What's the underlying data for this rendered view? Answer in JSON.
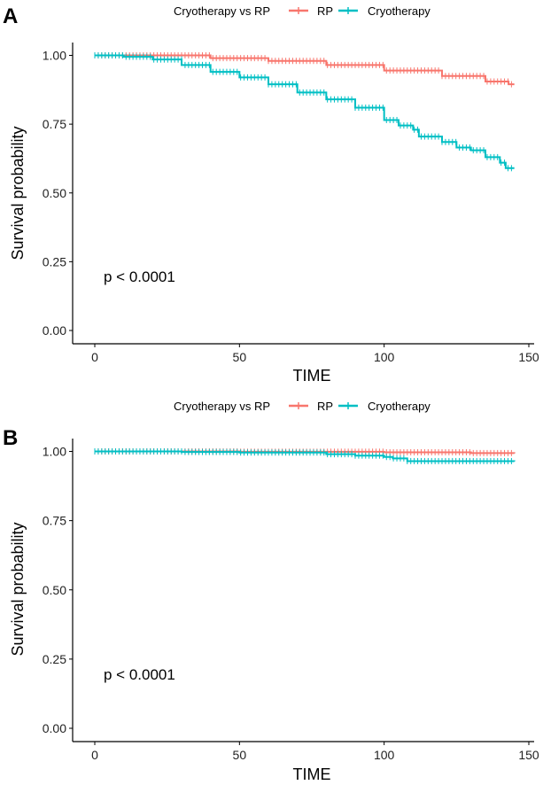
{
  "chart_data": [
    {
      "panel_label": "A",
      "type": "line",
      "subtype": "kaplan-meier step",
      "legend": {
        "title": "Cryotherapy vs RP",
        "position": "top"
      },
      "xlabel": "TIME",
      "ylabel": "Survival probability",
      "xlim": [
        0,
        150
      ],
      "ylim": [
        0,
        1
      ],
      "xticks": [
        "0",
        "50",
        "100",
        "150"
      ],
      "yticks": [
        "0.00",
        "0.25",
        "0.50",
        "0.75",
        "1.00"
      ],
      "annotation": "p < 0.0001",
      "grid": false,
      "series": [
        {
          "name": "RP",
          "color": "#F8766D",
          "x": [
            0,
            20,
            40,
            60,
            80,
            100,
            120,
            135,
            143,
            145
          ],
          "y": [
            1.0,
            1.0,
            0.99,
            0.98,
            0.965,
            0.945,
            0.925,
            0.905,
            0.895,
            0.895
          ]
        },
        {
          "name": "Cryotherapy",
          "color": "#00BFC4",
          "x": [
            0,
            10,
            20,
            30,
            40,
            50,
            60,
            70,
            80,
            90,
            100,
            105,
            110,
            112,
            120,
            125,
            130,
            135,
            140,
            142,
            145
          ],
          "y": [
            1.0,
            0.995,
            0.985,
            0.965,
            0.94,
            0.92,
            0.895,
            0.865,
            0.84,
            0.81,
            0.765,
            0.745,
            0.73,
            0.705,
            0.685,
            0.665,
            0.655,
            0.63,
            0.61,
            0.59,
            0.59
          ]
        }
      ]
    },
    {
      "panel_label": "B",
      "type": "line",
      "subtype": "kaplan-meier step",
      "legend": {
        "title": "Cryotherapy vs RP",
        "position": "top"
      },
      "xlabel": "TIME",
      "ylabel": "Survival probability",
      "xlim": [
        0,
        150
      ],
      "ylim": [
        0,
        1
      ],
      "xticks": [
        "0",
        "50",
        "100",
        "150"
      ],
      "yticks": [
        "0.00",
        "0.25",
        "0.50",
        "0.75",
        "1.00"
      ],
      "annotation": "p < 0.0001",
      "grid": false,
      "series": [
        {
          "name": "RP",
          "color": "#F8766D",
          "x": [
            0,
            50,
            100,
            130,
            145
          ],
          "y": [
            1.0,
            0.999,
            0.997,
            0.994,
            0.993
          ]
        },
        {
          "name": "Cryotherapy",
          "color": "#00BFC4",
          "x": [
            0,
            30,
            50,
            80,
            90,
            100,
            103,
            108,
            145
          ],
          "y": [
            1.0,
            0.998,
            0.996,
            0.99,
            0.985,
            0.98,
            0.975,
            0.965,
            0.964
          ]
        }
      ]
    }
  ]
}
